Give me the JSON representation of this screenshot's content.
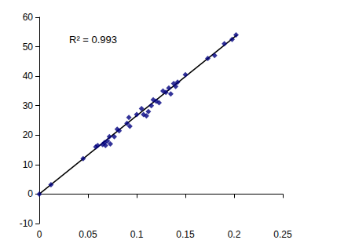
{
  "chart_data": {
    "type": "scatter",
    "annotation": "R² = 0.993",
    "xlim": [
      0,
      0.25
    ],
    "xticks": [
      0,
      0.05,
      0.1,
      0.15,
      0.2,
      0.25
    ],
    "ylim": [
      -10,
      60
    ],
    "yticks": [
      -10,
      0,
      10,
      20,
      30,
      40,
      50,
      60
    ],
    "grid": false,
    "series": [
      {
        "type": "scatter",
        "color": "#000080",
        "marker": "diamond",
        "x": [
          0,
          0.012,
          0.045,
          0.058,
          0.06,
          0.065,
          0.067,
          0.068,
          0.07,
          0.072,
          0.073,
          0.077,
          0.08,
          0.082,
          0.09,
          0.092,
          0.093,
          0.1,
          0.105,
          0.107,
          0.11,
          0.112,
          0.115,
          0.117,
          0.12,
          0.123,
          0.127,
          0.13,
          0.133,
          0.135,
          0.138,
          0.14,
          0.142,
          0.15,
          0.173,
          0.18,
          0.19,
          0.198,
          0.202
        ],
        "values": [
          0,
          3.2,
          12,
          16,
          16.5,
          16.8,
          17.5,
          16.5,
          18,
          19.5,
          17,
          19.5,
          22,
          21.5,
          24,
          26,
          23,
          27,
          29,
          27,
          26.5,
          28,
          30,
          32,
          31.5,
          31,
          35,
          34.5,
          36,
          34,
          37.5,
          36.5,
          38,
          40.5,
          46,
          47,
          51,
          52.5,
          54
        ]
      },
      {
        "type": "line",
        "color": "#000000",
        "line_style": "solid",
        "x": [
          0,
          0.203
        ],
        "values": [
          0,
          54
        ]
      }
    ]
  }
}
